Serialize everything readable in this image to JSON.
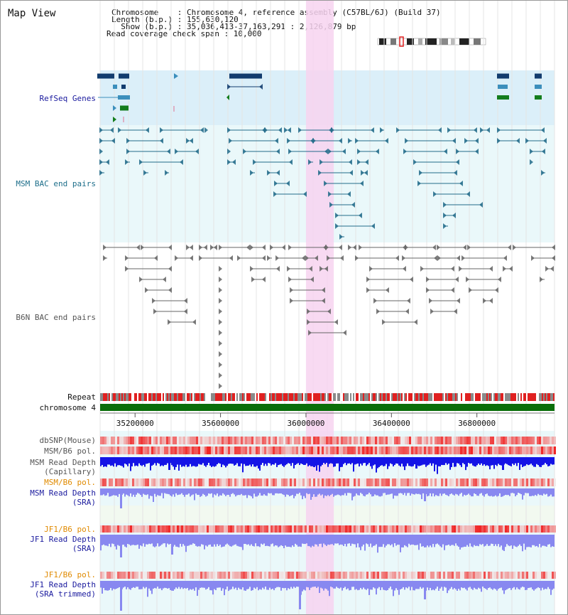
{
  "title": "Map View",
  "info": {
    "chromosome_line": "Chromosome    : Chromosome 4, reference assembly (C57BL/6J) (Build 37)",
    "length_line": "Length (b.p.) : 155,630,120",
    "show_line": "  Show (b.p.) : 35,036,413-37,163,291 : 2,126,879 bp",
    "coverage_line": "Read coverage check span : 10,000"
  },
  "tracks": {
    "refseq": "RefSeq Genes",
    "msm_bac": "MSM BAC end pairs",
    "b6n_bac": "B6N BAC end pairs",
    "repeat": "Repeat",
    "chromosome": "chromosome 4",
    "dbsnp": "dbSNP(Mouse)",
    "msm_b6_pol_1": "MSM/B6 pol.",
    "msm_read_depth_cap_1": "MSM Read Depth",
    "msm_read_depth_cap_2": "(Capillary)",
    "msm_b6_pol_2": "MSM/B6 pol.",
    "msm_read_depth_sra_1": "MSM Read Depth",
    "msm_read_depth_sra_2": "(SRA)",
    "jf1_b6_pol_1": "JF1/B6 pol.",
    "jf1_read_depth_sra_1": "JF1 Read Depth",
    "jf1_read_depth_sra_2": "(SRA)",
    "jf1_b6_pol_2": "JF1/B6 pol.",
    "jf1_read_depth_trim_1": "JF1 Read Depth",
    "jf1_read_depth_trim_2": "(SRA trimmed)"
  },
  "axis": {
    "start": 35036413,
    "end": 37163291,
    "ticks": [
      {
        "value": 35200000,
        "label": "35200000"
      },
      {
        "value": 35600000,
        "label": "35600000"
      },
      {
        "value": 36000000,
        "label": "36000000"
      },
      {
        "value": 36400000,
        "label": "36400000"
      },
      {
        "value": 36800000,
        "label": "36800000"
      }
    ],
    "highlight_start": 36000000,
    "highlight_end": 36130000
  },
  "colors": {
    "refseq_bg": "#dbeff9",
    "bac_bg": "#eaf8fa",
    "highlight": "#f7d4f0",
    "refseq_dark": "#123c6e",
    "refseq_mid": "#3c8fbc",
    "refseq_green": "#137d1d",
    "msm_bac": "#226b8a",
    "b6n_bac": "#666666",
    "chromosome": "#0a6e0a",
    "depth_dark": "#1414e6",
    "depth_light": "#8888f0",
    "label_blue": "#1a1a9e",
    "label_orange": "#e08a00",
    "label_teal": "#1d6e8a"
  }
}
